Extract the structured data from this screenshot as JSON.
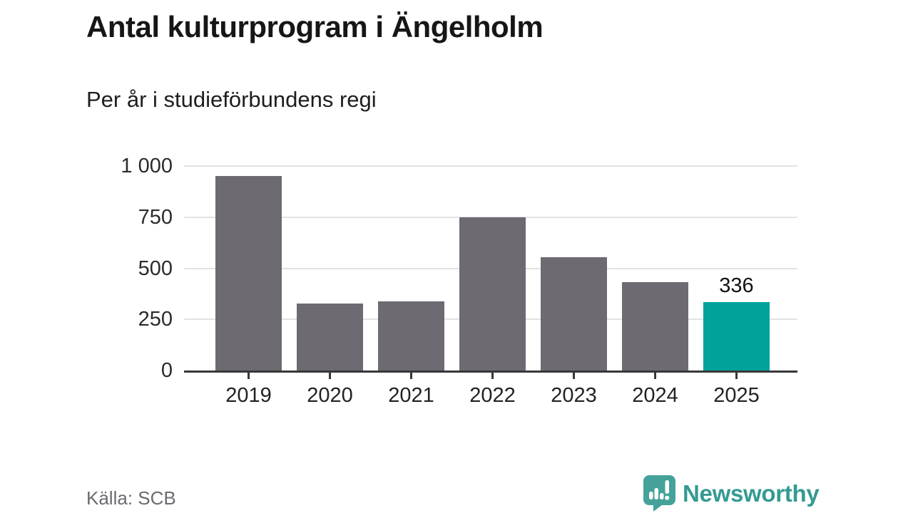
{
  "header": {
    "title": "Antal kulturprogram i Ängelholm",
    "subtitle": "Per år i studieförbundens regi"
  },
  "footer": {
    "source": "Källa: SCB",
    "brand": "Newsworthy",
    "logo_icon": "speech-bubble-bar-chart-exclamation-icon"
  },
  "colors": {
    "bar_default": "#6e6a71",
    "bar_highlight": "#00a29a",
    "grid": "#e3e3e3",
    "axis": "#383838",
    "brand_icon_teal": "#45a29a",
    "brand_text_teal": "#349a92"
  },
  "chart_data": {
    "type": "bar",
    "title": "Antal kulturprogram i Ängelholm",
    "subtitle": "Per år i studieförbundens regi",
    "xlabel": "",
    "ylabel": "",
    "categories": [
      "2019",
      "2020",
      "2021",
      "2022",
      "2023",
      "2024",
      "2025"
    ],
    "values": [
      950,
      326,
      337,
      750,
      554,
      432,
      336
    ],
    "bar_colors": [
      "#6e6a71",
      "#6e6a71",
      "#6e6a71",
      "#6e6a71",
      "#6e6a71",
      "#6e6a71",
      "#00a29a"
    ],
    "value_labels": [
      "",
      "",
      "",
      "",
      "",
      "",
      "336"
    ],
    "ylim": [
      0,
      1000
    ],
    "yticks": [
      0,
      250,
      500,
      750,
      1000
    ],
    "ytick_labels": [
      "0",
      "250",
      "500",
      "750",
      "1 000"
    ],
    "grid": true,
    "legend": "none",
    "source": "Källa: SCB"
  }
}
